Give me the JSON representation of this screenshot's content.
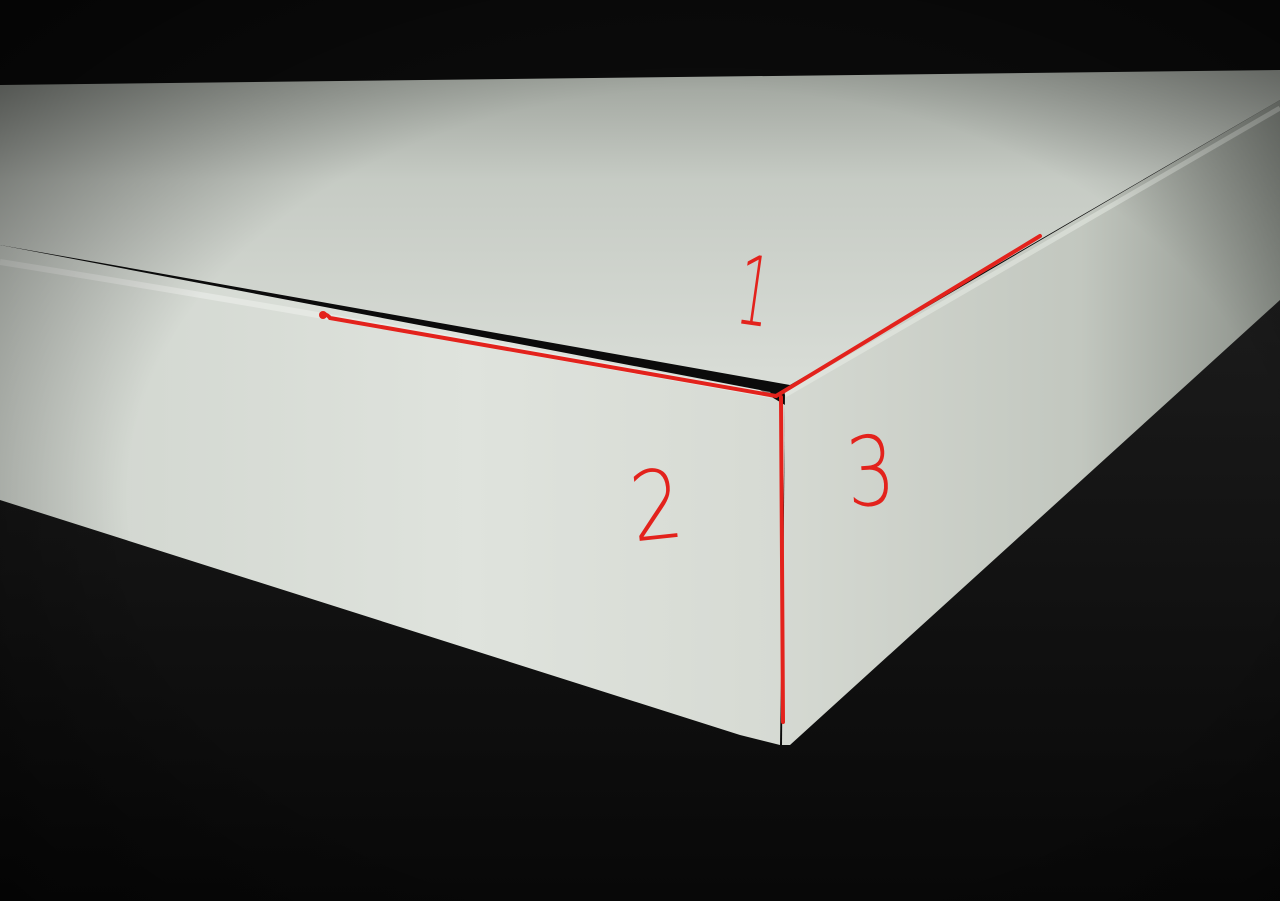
{
  "photo": {
    "subject": "box-corner-photo",
    "colors": {
      "background": "#0d0d0d",
      "box_face": "#d8ddd6",
      "annotation": "#e3221c"
    }
  },
  "annotations": {
    "edge_labels": [
      "1",
      "2",
      "3"
    ]
  }
}
